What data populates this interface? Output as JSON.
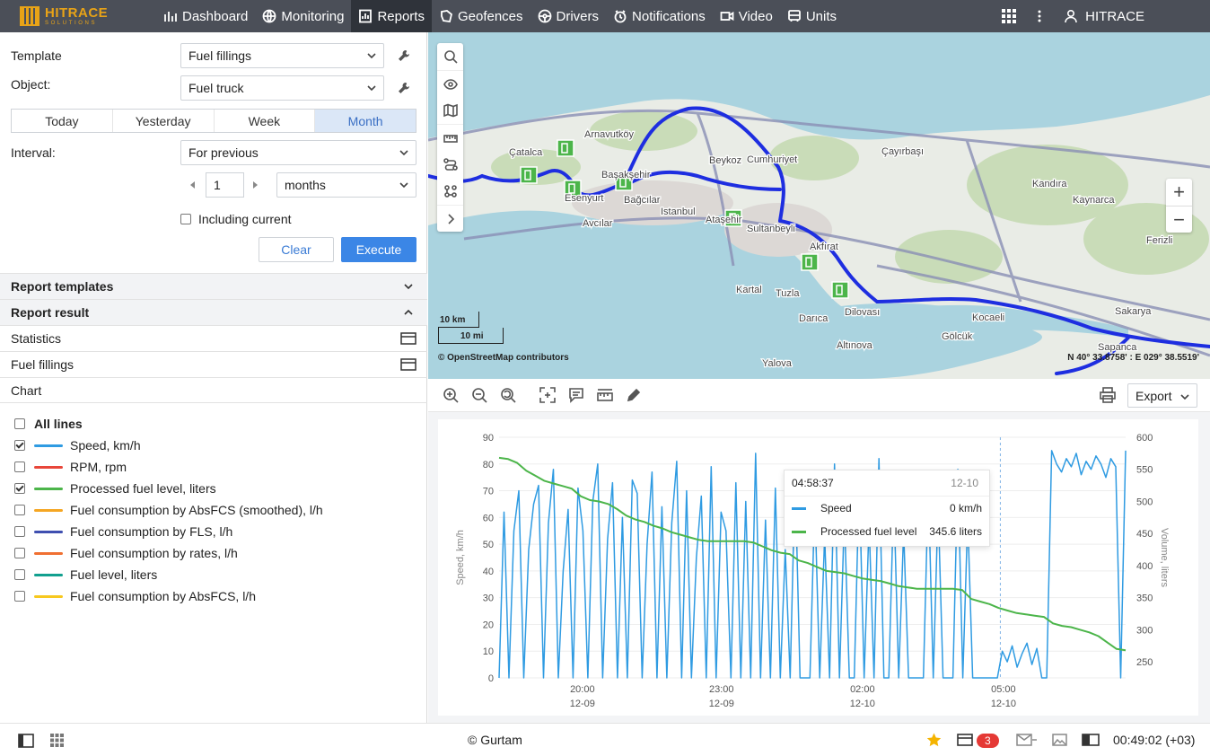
{
  "brand": {
    "name": "HITRACE",
    "tagline": "SOLUTIONS",
    "accent": "#e8a317"
  },
  "nav": {
    "items": [
      {
        "label": "Dashboard",
        "icon": "bar-chart-icon"
      },
      {
        "label": "Monitoring",
        "icon": "globe-icon"
      },
      {
        "label": "Reports",
        "icon": "report-icon",
        "active": true
      },
      {
        "label": "Geofences",
        "icon": "geofence-icon"
      },
      {
        "label": "Drivers",
        "icon": "steering-wheel-icon"
      },
      {
        "label": "Notifications",
        "icon": "bell-clock-icon"
      },
      {
        "label": "Video",
        "icon": "video-camera-icon"
      },
      {
        "label": "Units",
        "icon": "bus-icon"
      }
    ],
    "user": "HITRACE"
  },
  "form": {
    "template_label": "Template",
    "template_value": "Fuel fillings",
    "object_label": "Object:",
    "object_value": "Fuel truck",
    "periods": [
      "Today",
      "Yesterday",
      "Week",
      "Month"
    ],
    "active_period": "Month",
    "interval_label": "Interval:",
    "interval_value": "For previous",
    "count": "1",
    "unit": "months",
    "including_current": "Including current",
    "clear": "Clear",
    "execute": "Execute"
  },
  "sections": {
    "report_templates": "Report templates",
    "report_result": "Report result",
    "statistics": "Statistics",
    "fuel_fillings": "Fuel fillings",
    "chart": "Chart"
  },
  "lines": [
    {
      "label": "All lines",
      "checked": false,
      "bold": true,
      "color": ""
    },
    {
      "label": "Speed, km/h",
      "checked": true,
      "color": "#2f9be2"
    },
    {
      "label": "RPM, rpm",
      "checked": false,
      "color": "#e8463a"
    },
    {
      "label": "Processed fuel level, liters",
      "checked": true,
      "color": "#4cb54a"
    },
    {
      "label": "Fuel consumption by AbsFCS (smoothed), l/h",
      "checked": false,
      "color": "#f5a623"
    },
    {
      "label": "Fuel consumption by FLS, l/h",
      "checked": false,
      "color": "#3f4fb0"
    },
    {
      "label": "Fuel consumption by rates, l/h",
      "checked": false,
      "color": "#f07032"
    },
    {
      "label": "Fuel level, liters",
      "checked": false,
      "color": "#12a08f"
    },
    {
      "label": "Fuel consumption by AbsFCS, l/h",
      "checked": false,
      "color": "#f7c81e"
    }
  ],
  "map": {
    "places": [
      "Arnavutköy",
      "Çatalca",
      "Başakşehir",
      "Esenyurt",
      "Bağcılar",
      "Istanbul",
      "Beykoz",
      "Cumhuriyet",
      "Çayırbaşı",
      "Kandıra",
      "Kaynarca",
      "Ferizli",
      "Avcılar",
      "Ataşehir",
      "Sultanbeyli",
      "Akfırat",
      "Kartal",
      "Tuzla",
      "Darıca",
      "Dilovası",
      "Kocaeli",
      "Sakarya",
      "Gölcük",
      "Sapanca",
      "Altınova",
      "Yalova"
    ],
    "scale_km": "10 km",
    "scale_mi": "10 mi",
    "attribution": "© OpenStreetMap contributors",
    "coords": "N 40° 33.8758' : E 029° 38.5519'"
  },
  "chart_toolbar": {
    "export": "Export"
  },
  "chart_data": {
    "type": "line",
    "x_ticks": [
      {
        "time": "20:00",
        "date": "12-09"
      },
      {
        "time": "23:00",
        "date": "12-09"
      },
      {
        "time": "02:00",
        "date": "12-10"
      },
      {
        "time": "05:00",
        "date": "12-10"
      }
    ],
    "ylabel": "Speed, km/h",
    "ylabel_right": "Volume, liters",
    "ylim": [
      0,
      90
    ],
    "ylim_right": [
      225,
      600
    ],
    "yticks": [
      0,
      10,
      20,
      30,
      40,
      50,
      60,
      70,
      80,
      90
    ],
    "yticks_right": [
      250,
      300,
      350,
      400,
      450,
      500,
      550,
      600
    ],
    "series": [
      {
        "name": "Speed",
        "axis": "left",
        "color": "#2f9be2",
        "values": [
          0,
          62,
          0,
          55,
          70,
          0,
          48,
          65,
          72,
          0,
          58,
          78,
          0,
          40,
          63,
          0,
          71,
          55,
          0,
          66,
          80,
          0,
          52,
          73,
          0,
          60,
          0,
          74,
          69,
          0,
          50,
          77,
          0,
          64,
          0,
          58,
          81,
          0,
          70,
          0,
          45,
          68,
          0,
          79,
          0,
          62,
          55,
          0,
          73,
          0,
          66,
          0,
          84,
          0,
          59,
          0,
          71,
          0,
          48,
          0,
          76,
          0,
          0,
          0,
          67,
          0,
          53,
          0,
          80,
          0,
          61,
          0,
          0,
          74,
          0,
          58,
          0,
          82,
          0,
          0,
          69,
          0,
          55,
          0,
          0,
          0,
          0,
          72,
          0,
          65,
          0,
          0,
          0,
          78,
          0,
          60,
          0,
          0,
          0,
          0,
          0,
          0,
          10,
          6,
          12,
          4,
          9,
          13,
          5,
          11,
          0,
          0,
          85,
          80,
          77,
          82,
          79,
          84,
          76,
          81,
          78,
          83,
          80,
          75,
          82,
          79,
          0,
          85
        ]
      },
      {
        "name": "Processed fuel level",
        "axis": "right",
        "color": "#4cb54a",
        "values": [
          568,
          566,
          560,
          548,
          540,
          532,
          528,
          524,
          520,
          508,
          502,
          500,
          496,
          488,
          478,
          472,
          468,
          462,
          458,
          452,
          448,
          444,
          440,
          438,
          438,
          438,
          438,
          438,
          436,
          430,
          424,
          420,
          418,
          408,
          404,
          398,
          392,
          390,
          388,
          384,
          380,
          378,
          376,
          372,
          368,
          366,
          364,
          364,
          364,
          364,
          364,
          362,
          348,
          344,
          340,
          334,
          330,
          326,
          324,
          322,
          320,
          310,
          306,
          304,
          300,
          296,
          290,
          280,
          270,
          268
        ]
      }
    ],
    "tooltip": {
      "time": "04:58:37",
      "date": "12-10",
      "rows": [
        {
          "name": "Speed",
          "value": "0 km/h"
        },
        {
          "name": "Processed fuel level",
          "value": "345.6 liters"
        }
      ]
    }
  },
  "status": {
    "copyright": "© Gurtam",
    "notification_count": "3",
    "time": "00:49:02 (+03)"
  }
}
